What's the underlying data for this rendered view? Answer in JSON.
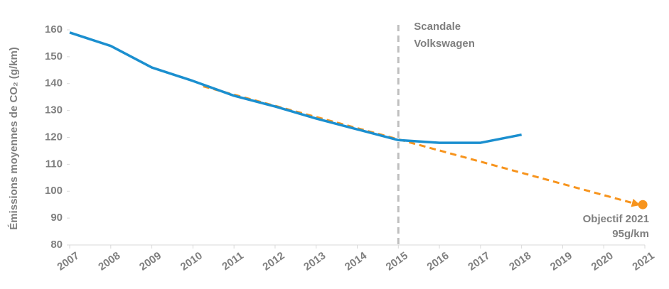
{
  "chart_data": {
    "type": "line",
    "y_label": "Émissions moyennes de CO₂ (g/km)",
    "x": [
      2007,
      2008,
      2009,
      2010,
      2011,
      2012,
      2013,
      2014,
      2015,
      2016,
      2017,
      2018
    ],
    "series": [
      {
        "color": "#1b8fcf",
        "values": [
          159,
          154,
          146,
          141,
          135.5,
          131.5,
          127,
          123,
          119,
          118,
          118,
          121
        ]
      }
    ],
    "trend": {
      "color": "#f7941d",
      "x": [
        2010.25,
        2020.85
      ],
      "values": [
        139,
        95
      ]
    },
    "target": {
      "color": "#f7941d",
      "x": 2020.95,
      "value": 95,
      "labels": [
        "Objectif 2021",
        "95g/km"
      ]
    },
    "event": {
      "x": 2015,
      "color": "#bfbfbf",
      "labels": [
        "Scandale",
        "Volkswagen"
      ]
    },
    "xlim": [
      2007,
      2021
    ],
    "xticks": [
      2007,
      2008,
      2009,
      2010,
      2011,
      2012,
      2013,
      2014,
      2015,
      2016,
      2017,
      2018,
      2019,
      2020,
      2021
    ],
    "ylim": [
      80,
      160
    ],
    "yticks": [
      80,
      90,
      100,
      110,
      120,
      130,
      140,
      150,
      160
    ],
    "grid": false
  }
}
